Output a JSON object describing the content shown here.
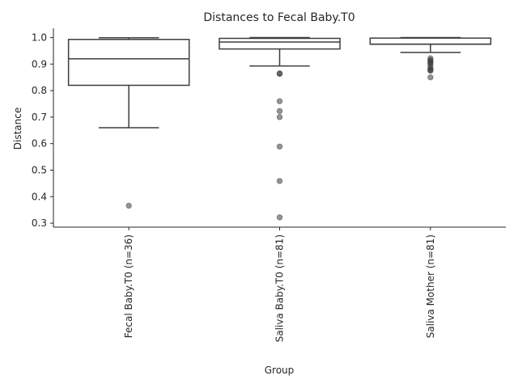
{
  "chart_data": {
    "type": "box",
    "title": "Distances to Fecal Baby.T0",
    "xlabel": "Group",
    "ylabel": "Distance",
    "ylim": [
      0.285,
      1.035
    ],
    "yticks": [
      "0.3",
      "0.4",
      "0.5",
      "0.6",
      "0.7",
      "0.8",
      "0.9",
      "1.0"
    ],
    "grid": false,
    "categories": [
      "Fecal Baby.T0 (n=36)",
      "Saliva Baby.T0 (n=81)",
      "Saliva Mother (n=81)"
    ],
    "boxes": [
      {
        "category": "Fecal Baby.T0 (n=36)",
        "whisker_low": 0.66,
        "q1": 0.82,
        "median": 0.92,
        "q3": 0.993,
        "whisker_high": 0.999,
        "outliers": [
          0.366
        ]
      },
      {
        "category": "Saliva Baby.T0 (n=81)",
        "whisker_low": 0.893,
        "q1": 0.957,
        "median": 0.983,
        "q3": 0.997,
        "whisker_high": 1.0,
        "outliers": [
          0.863,
          0.865,
          0.76,
          0.723,
          0.7,
          0.589,
          0.459,
          0.322
        ]
      },
      {
        "category": "Saliva Mother (n=81)",
        "whisker_low": 0.944,
        "q1": 0.975,
        "median": 0.975,
        "q3": 0.998,
        "whisker_high": 1.0,
        "outliers": [
          0.922,
          0.915,
          0.91,
          0.905,
          0.9,
          0.89,
          0.882,
          0.878,
          0.875,
          0.85
        ]
      }
    ]
  }
}
